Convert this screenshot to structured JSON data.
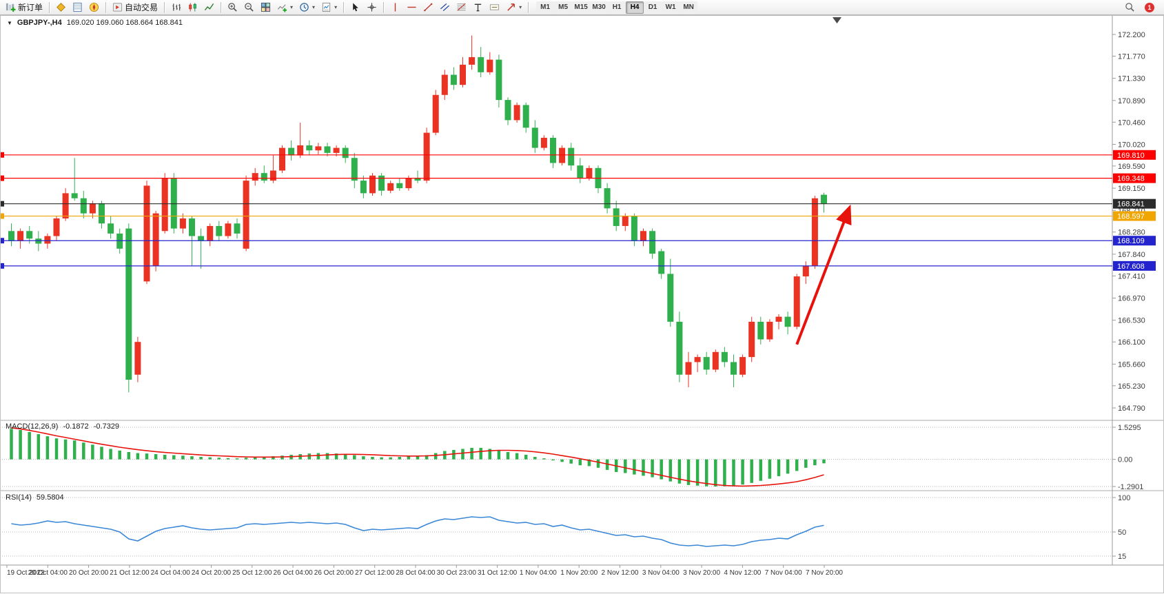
{
  "toolbar": {
    "buttons": [
      {
        "name": "new-order-button",
        "icon": "new-order-icon",
        "label": "新订单"
      },
      {
        "separator": true
      },
      {
        "name": "market-watch-button",
        "icon": "market-watch-icon"
      },
      {
        "name": "data-window-button",
        "icon": "data-window-icon"
      },
      {
        "name": "navigator-button",
        "icon": "navigator-icon"
      },
      {
        "separator": true
      },
      {
        "name": "autotrading-button",
        "icon": "autotrading-icon",
        "label": "自动交易"
      },
      {
        "separator": true
      },
      {
        "name": "bar-chart-button",
        "icon": "bar-chart-icon"
      },
      {
        "name": "candlestick-button",
        "icon": "candlestick-icon"
      },
      {
        "name": "line-chart-button",
        "icon": "line-chart-icon"
      },
      {
        "separator": true
      },
      {
        "name": "zoom-in-button",
        "icon": "zoom-in-icon"
      },
      {
        "name": "zoom-out-button",
        "icon": "zoom-out-icon"
      },
      {
        "name": "tile-windows-button",
        "icon": "tile-windows-icon"
      },
      {
        "name": "indicators-button",
        "icon": "indicators-icon",
        "caret": true
      },
      {
        "name": "periods-button",
        "icon": "clock-icon",
        "caret": true
      },
      {
        "name": "templates-button",
        "icon": "templates-icon",
        "caret": true
      },
      {
        "separator": true
      },
      {
        "name": "cursor-button",
        "icon": "cursor-icon"
      },
      {
        "name": "crosshair-button",
        "icon": "crosshair-icon"
      },
      {
        "separator": true
      },
      {
        "name": "vertical-line-button",
        "icon": "vertical-line-icon"
      },
      {
        "name": "horizontal-line-button",
        "icon": "horizontal-line-icon"
      },
      {
        "name": "trendline-button",
        "icon": "trendline-icon"
      },
      {
        "name": "channel-button",
        "icon": "channel-icon"
      },
      {
        "name": "fibonacci-button",
        "icon": "fibonacci-icon"
      },
      {
        "name": "text-button",
        "icon": "text-icon"
      },
      {
        "name": "label-button",
        "icon": "label-icon"
      },
      {
        "name": "arrows-button",
        "icon": "arrows-icon",
        "caret": true
      },
      {
        "separator": true
      }
    ],
    "timeframes": [
      "M1",
      "M5",
      "M15",
      "M30",
      "H1",
      "H4",
      "D1",
      "W1",
      "MN"
    ],
    "active_timeframe": "H4",
    "right_buttons": [
      {
        "name": "search-button",
        "icon": "search-icon"
      },
      {
        "name": "notifications-button",
        "icon": "notification-badge",
        "badge": "1"
      }
    ]
  },
  "chart_header": {
    "symbol_period": "GBPJPY-,H4",
    "ohlc_text": "169.020 169.060 168.664 168.841"
  },
  "colors": {
    "bull": "#ea3323",
    "bear": "#2fb04c",
    "macd_hist": "#2fb04c",
    "macd_signal": "#e8120c",
    "rsi_line": "#3a87d8",
    "axis_text": "#3c3c3c",
    "annotation_arrow": "#e8120c"
  },
  "chart_data": {
    "type": "candlestick",
    "title": "GBPJPY- H4 chart with MACD and RSI",
    "ylim": [
      164.75,
      172.45
    ],
    "y_ticks": [
      "172.200",
      "171.770",
      "171.330",
      "170.890",
      "170.460",
      "170.020",
      "169.590",
      "169.150",
      "168.710",
      "168.280",
      "167.840",
      "167.410",
      "166.970",
      "166.530",
      "166.100",
      "165.660",
      "165.230",
      "164.790"
    ],
    "time_labels": [
      "19 Oct 2022",
      "20 Oct 04:00",
      "20 Oct 20:00",
      "21 Oct 12:00",
      "24 Oct 04:00",
      "24 Oct 20:00",
      "25 Oct 12:00",
      "26 Oct 04:00",
      "26 Oct 20:00",
      "27 Oct 12:00",
      "28 Oct 04:00",
      "30 Oct 23:00",
      "31 Oct 12:00",
      "1 Nov 04:00",
      "1 Nov 20:00",
      "2 Nov 12:00",
      "3 Nov 04:00",
      "3 Nov 20:00",
      "4 Nov 12:00",
      "7 Nov 04:00",
      "7 Nov 20:00"
    ],
    "h_lines": [
      {
        "label": "169.810",
        "price": 169.81,
        "color": "#ff0000"
      },
      {
        "label": "169.348",
        "price": 169.348,
        "color": "#ff0000"
      },
      {
        "label": "168.841",
        "price": 168.841,
        "color": "#2b2b2b"
      },
      {
        "label": "168.597",
        "price": 168.597,
        "color": "#f0a500"
      },
      {
        "label": "168.109",
        "price": 168.109,
        "color": "#2424cf"
      },
      {
        "label": "167.608",
        "price": 167.608,
        "color": "#2424cf"
      }
    ],
    "candles": [
      [
        168.3,
        168.45,
        168.0,
        168.1
      ],
      [
        168.1,
        168.35,
        167.95,
        168.3
      ],
      [
        168.3,
        168.4,
        168.05,
        168.15
      ],
      [
        168.15,
        168.3,
        167.9,
        168.05
      ],
      [
        168.05,
        168.25,
        167.95,
        168.2
      ],
      [
        168.2,
        168.6,
        168.1,
        168.55
      ],
      [
        168.55,
        169.15,
        168.5,
        169.05
      ],
      [
        169.05,
        169.75,
        168.9,
        168.95
      ],
      [
        168.95,
        169.1,
        168.55,
        168.65
      ],
      [
        168.65,
        168.9,
        168.55,
        168.85
      ],
      [
        168.85,
        168.9,
        168.35,
        168.45
      ],
      [
        168.45,
        168.6,
        168.15,
        168.25
      ],
      [
        168.25,
        168.35,
        167.85,
        167.95
      ],
      [
        168.35,
        168.45,
        165.1,
        165.35
      ],
      [
        165.45,
        166.2,
        165.3,
        166.1
      ],
      [
        167.3,
        169.3,
        167.25,
        169.2
      ],
      [
        167.6,
        168.7,
        167.5,
        168.65
      ],
      [
        168.3,
        169.45,
        168.25,
        169.35
      ],
      [
        169.35,
        169.45,
        168.25,
        168.35
      ],
      [
        168.35,
        168.65,
        168.25,
        168.55
      ],
      [
        168.55,
        168.6,
        167.6,
        168.2
      ],
      [
        168.2,
        168.35,
        167.55,
        168.1
      ],
      [
        168.1,
        168.45,
        168.0,
        168.4
      ],
      [
        168.4,
        168.5,
        168.1,
        168.2
      ],
      [
        168.2,
        168.5,
        168.15,
        168.45
      ],
      [
        168.45,
        168.55,
        168.15,
        168.25
      ],
      [
        167.95,
        169.4,
        167.9,
        169.3
      ],
      [
        169.3,
        169.55,
        169.2,
        169.45
      ],
      [
        169.45,
        169.6,
        169.25,
        169.3
      ],
      [
        169.3,
        169.8,
        169.25,
        169.5
      ],
      [
        169.5,
        170.0,
        169.45,
        169.95
      ],
      [
        169.95,
        170.1,
        169.7,
        169.8
      ],
      [
        169.8,
        170.45,
        169.75,
        170.0
      ],
      [
        170.0,
        170.1,
        169.8,
        169.9
      ],
      [
        169.9,
        170.05,
        169.82,
        169.98
      ],
      [
        169.98,
        170.05,
        169.78,
        169.85
      ],
      [
        169.85,
        170.0,
        169.78,
        169.95
      ],
      [
        169.95,
        170.0,
        169.65,
        169.75
      ],
      [
        169.75,
        169.85,
        169.15,
        169.3
      ],
      [
        169.3,
        169.4,
        168.95,
        169.05
      ],
      [
        169.05,
        169.45,
        169.0,
        169.4
      ],
      [
        169.4,
        169.45,
        169.0,
        169.1
      ],
      [
        169.1,
        169.3,
        169.05,
        169.25
      ],
      [
        169.25,
        169.35,
        169.1,
        169.15
      ],
      [
        169.15,
        169.4,
        169.1,
        169.35
      ],
      [
        169.35,
        169.5,
        169.25,
        169.3
      ],
      [
        169.3,
        170.35,
        169.25,
        170.25
      ],
      [
        170.25,
        171.1,
        170.2,
        171.0
      ],
      [
        171.0,
        171.5,
        170.9,
        171.4
      ],
      [
        171.4,
        171.55,
        171.1,
        171.2
      ],
      [
        171.2,
        171.75,
        171.15,
        171.6
      ],
      [
        171.6,
        172.18,
        171.5,
        171.75
      ],
      [
        171.75,
        171.95,
        171.35,
        171.45
      ],
      [
        171.45,
        171.85,
        171.4,
        171.7
      ],
      [
        171.7,
        171.8,
        170.75,
        170.9
      ],
      [
        170.9,
        170.95,
        170.4,
        170.5
      ],
      [
        170.5,
        170.85,
        170.45,
        170.8
      ],
      [
        170.8,
        170.85,
        170.25,
        170.35
      ],
      [
        170.35,
        170.5,
        169.85,
        169.95
      ],
      [
        169.95,
        170.2,
        169.9,
        170.15
      ],
      [
        170.15,
        170.2,
        169.55,
        169.65
      ],
      [
        169.65,
        170.0,
        169.6,
        169.95
      ],
      [
        169.95,
        170.05,
        169.5,
        169.6
      ],
      [
        169.6,
        169.75,
        169.25,
        169.35
      ],
      [
        169.35,
        169.6,
        169.3,
        169.55
      ],
      [
        169.55,
        169.6,
        169.05,
        169.15
      ],
      [
        169.15,
        169.25,
        168.65,
        168.75
      ],
      [
        168.75,
        168.9,
        168.3,
        168.4
      ],
      [
        168.4,
        168.65,
        168.3,
        168.6
      ],
      [
        168.6,
        168.65,
        168.0,
        168.1
      ],
      [
        168.1,
        168.35,
        168.0,
        168.3
      ],
      [
        168.3,
        168.35,
        167.75,
        167.85
      ],
      [
        167.9,
        167.95,
        167.35,
        167.45
      ],
      [
        167.45,
        167.75,
        166.4,
        166.5
      ],
      [
        166.5,
        166.7,
        165.3,
        165.45
      ],
      [
        165.45,
        165.9,
        165.2,
        165.7
      ],
      [
        165.7,
        165.85,
        165.5,
        165.8
      ],
      [
        165.8,
        165.9,
        165.45,
        165.55
      ],
      [
        165.55,
        165.95,
        165.5,
        165.9
      ],
      [
        165.9,
        166.0,
        165.6,
        165.7
      ],
      [
        165.7,
        165.85,
        165.2,
        165.45
      ],
      [
        165.45,
        165.85,
        165.4,
        165.8
      ],
      [
        165.8,
        166.6,
        165.7,
        166.5
      ],
      [
        166.5,
        166.6,
        166.05,
        166.15
      ],
      [
        166.15,
        166.55,
        166.1,
        166.5
      ],
      [
        166.5,
        166.65,
        166.35,
        166.6
      ],
      [
        166.6,
        166.7,
        166.25,
        166.4
      ],
      [
        166.4,
        167.45,
        166.35,
        167.4
      ],
      [
        167.4,
        167.7,
        167.25,
        167.6
      ],
      [
        167.6,
        169.0,
        167.55,
        168.95
      ],
      [
        169.02,
        169.06,
        168.664,
        168.841
      ]
    ],
    "annotations": {
      "trend_arrow": {
        "from_bar": 87,
        "from_price": 166.05,
        "to_bar": 92.8,
        "to_price": 168.75
      }
    },
    "macd": {
      "label": "MACD(12,26,9)",
      "main_value": "-0.1872",
      "signal_value": "-0.7329",
      "scale_top": "1.5295",
      "scale_zero": "0.00",
      "scale_bottom": "-1.2901",
      "histogram": [
        1.45,
        1.4,
        1.3,
        1.2,
        1.1,
        1.0,
        0.95,
        0.9,
        0.8,
        0.7,
        0.6,
        0.5,
        0.42,
        0.35,
        0.3,
        0.28,
        0.25,
        0.22,
        0.2,
        0.18,
        0.15,
        0.12,
        0.1,
        0.08,
        0.06,
        0.05,
        0.08,
        0.1,
        0.12,
        0.15,
        0.18,
        0.22,
        0.25,
        0.28,
        0.3,
        0.3,
        0.28,
        0.25,
        0.2,
        0.15,
        0.12,
        0.1,
        0.1,
        0.12,
        0.15,
        0.15,
        0.2,
        0.3,
        0.4,
        0.45,
        0.5,
        0.55,
        0.55,
        0.5,
        0.45,
        0.35,
        0.3,
        0.22,
        0.12,
        0.05,
        -0.05,
        -0.12,
        -0.2,
        -0.28,
        -0.32,
        -0.4,
        -0.5,
        -0.6,
        -0.65,
        -0.72,
        -0.78,
        -0.85,
        -0.95,
        -1.05,
        -1.15,
        -1.22,
        -1.25,
        -1.28,
        -1.29,
        -1.28,
        -1.25,
        -1.2,
        -1.12,
        -1.02,
        -0.92,
        -0.8,
        -0.68,
        -0.55,
        -0.4,
        -0.28,
        -0.1872
      ],
      "signal": [
        1.5,
        1.45,
        1.38,
        1.3,
        1.21,
        1.12,
        1.04,
        0.96,
        0.88,
        0.8,
        0.72,
        0.65,
        0.58,
        0.52,
        0.46,
        0.41,
        0.37,
        0.33,
        0.3,
        0.27,
        0.24,
        0.21,
        0.19,
        0.17,
        0.15,
        0.13,
        0.12,
        0.11,
        0.11,
        0.11,
        0.12,
        0.13,
        0.15,
        0.17,
        0.19,
        0.21,
        0.23,
        0.24,
        0.24,
        0.23,
        0.22,
        0.2,
        0.18,
        0.17,
        0.16,
        0.16,
        0.17,
        0.19,
        0.22,
        0.26,
        0.3,
        0.34,
        0.38,
        0.41,
        0.43,
        0.43,
        0.42,
        0.4,
        0.36,
        0.31,
        0.25,
        0.18,
        0.11,
        0.03,
        -0.05,
        -0.13,
        -0.22,
        -0.31,
        -0.4,
        -0.49,
        -0.58,
        -0.67,
        -0.76,
        -0.85,
        -0.94,
        -1.02,
        -1.09,
        -1.15,
        -1.2,
        -1.24,
        -1.26,
        -1.27,
        -1.26,
        -1.24,
        -1.21,
        -1.17,
        -1.12,
        -1.06,
        -0.97,
        -0.86,
        -0.7329
      ]
    },
    "rsi": {
      "label": "RSI(14)",
      "value": "59.5804",
      "levels": [
        "100",
        "50",
        "15"
      ],
      "values": [
        62,
        60,
        61,
        63,
        66,
        64,
        65,
        62,
        60,
        58,
        56,
        54,
        50,
        40,
        37,
        44,
        51,
        55,
        57,
        59,
        56,
        54,
        53,
        54,
        55,
        56,
        61,
        62,
        61,
        62,
        63,
        64,
        63,
        64,
        63,
        62,
        63,
        61,
        56,
        52,
        54,
        53,
        54,
        55,
        56,
        55,
        61,
        66,
        69,
        68,
        70,
        72,
        71,
        72,
        67,
        65,
        63,
        64,
        61,
        62,
        58,
        60,
        56,
        53,
        54,
        51,
        48,
        45,
        46,
        43,
        44,
        41,
        39,
        34,
        31,
        30,
        31,
        29,
        30,
        31,
        30,
        32,
        36,
        38,
        39,
        41,
        40,
        46,
        51,
        57,
        59.58
      ]
    }
  }
}
